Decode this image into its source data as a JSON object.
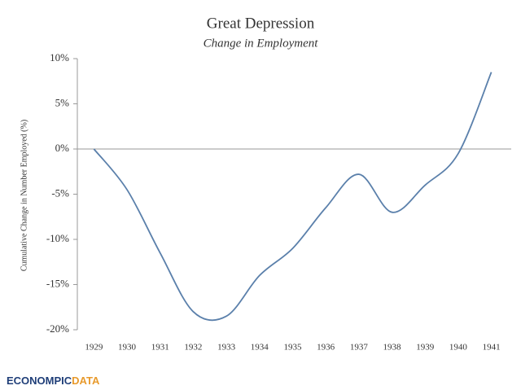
{
  "chart_data": {
    "type": "line",
    "title": "Great Depression",
    "subtitle": "Change in Employment",
    "y_label": "Cumulative Change in Number Employed (%)",
    "x": [
      1929,
      1930,
      1931,
      1932,
      1933,
      1934,
      1935,
      1936,
      1937,
      1938,
      1939,
      1940,
      1941
    ],
    "series": [
      {
        "name": "Change in Employment",
        "color": "#5b80ab",
        "values": [
          0,
          -4.5,
          -11.5,
          -18,
          -18.5,
          -14,
          -11,
          -6.5,
          -2.8,
          -7,
          -4,
          -0.5,
          8.5
        ]
      }
    ],
    "xlim": [
      1928.5,
      1941.6
    ],
    "xticks": [
      1929,
      1930,
      1931,
      1932,
      1933,
      1934,
      1935,
      1936,
      1937,
      1938,
      1939,
      1940,
      1941
    ],
    "ylim": [
      -20,
      10
    ],
    "yticks": [
      {
        "value": -20,
        "label": "-20%"
      },
      {
        "value": -15,
        "label": "-15%"
      },
      {
        "value": -10,
        "label": "-10%"
      },
      {
        "value": -5,
        "label": "-5%"
      },
      {
        "value": 0,
        "label": "0%"
      },
      {
        "value": 5,
        "label": "5%"
      },
      {
        "value": 10,
        "label": "10%"
      }
    ],
    "grid": false,
    "logo": {
      "main": "ECONOMPIC",
      "accent": "DATA"
    }
  }
}
